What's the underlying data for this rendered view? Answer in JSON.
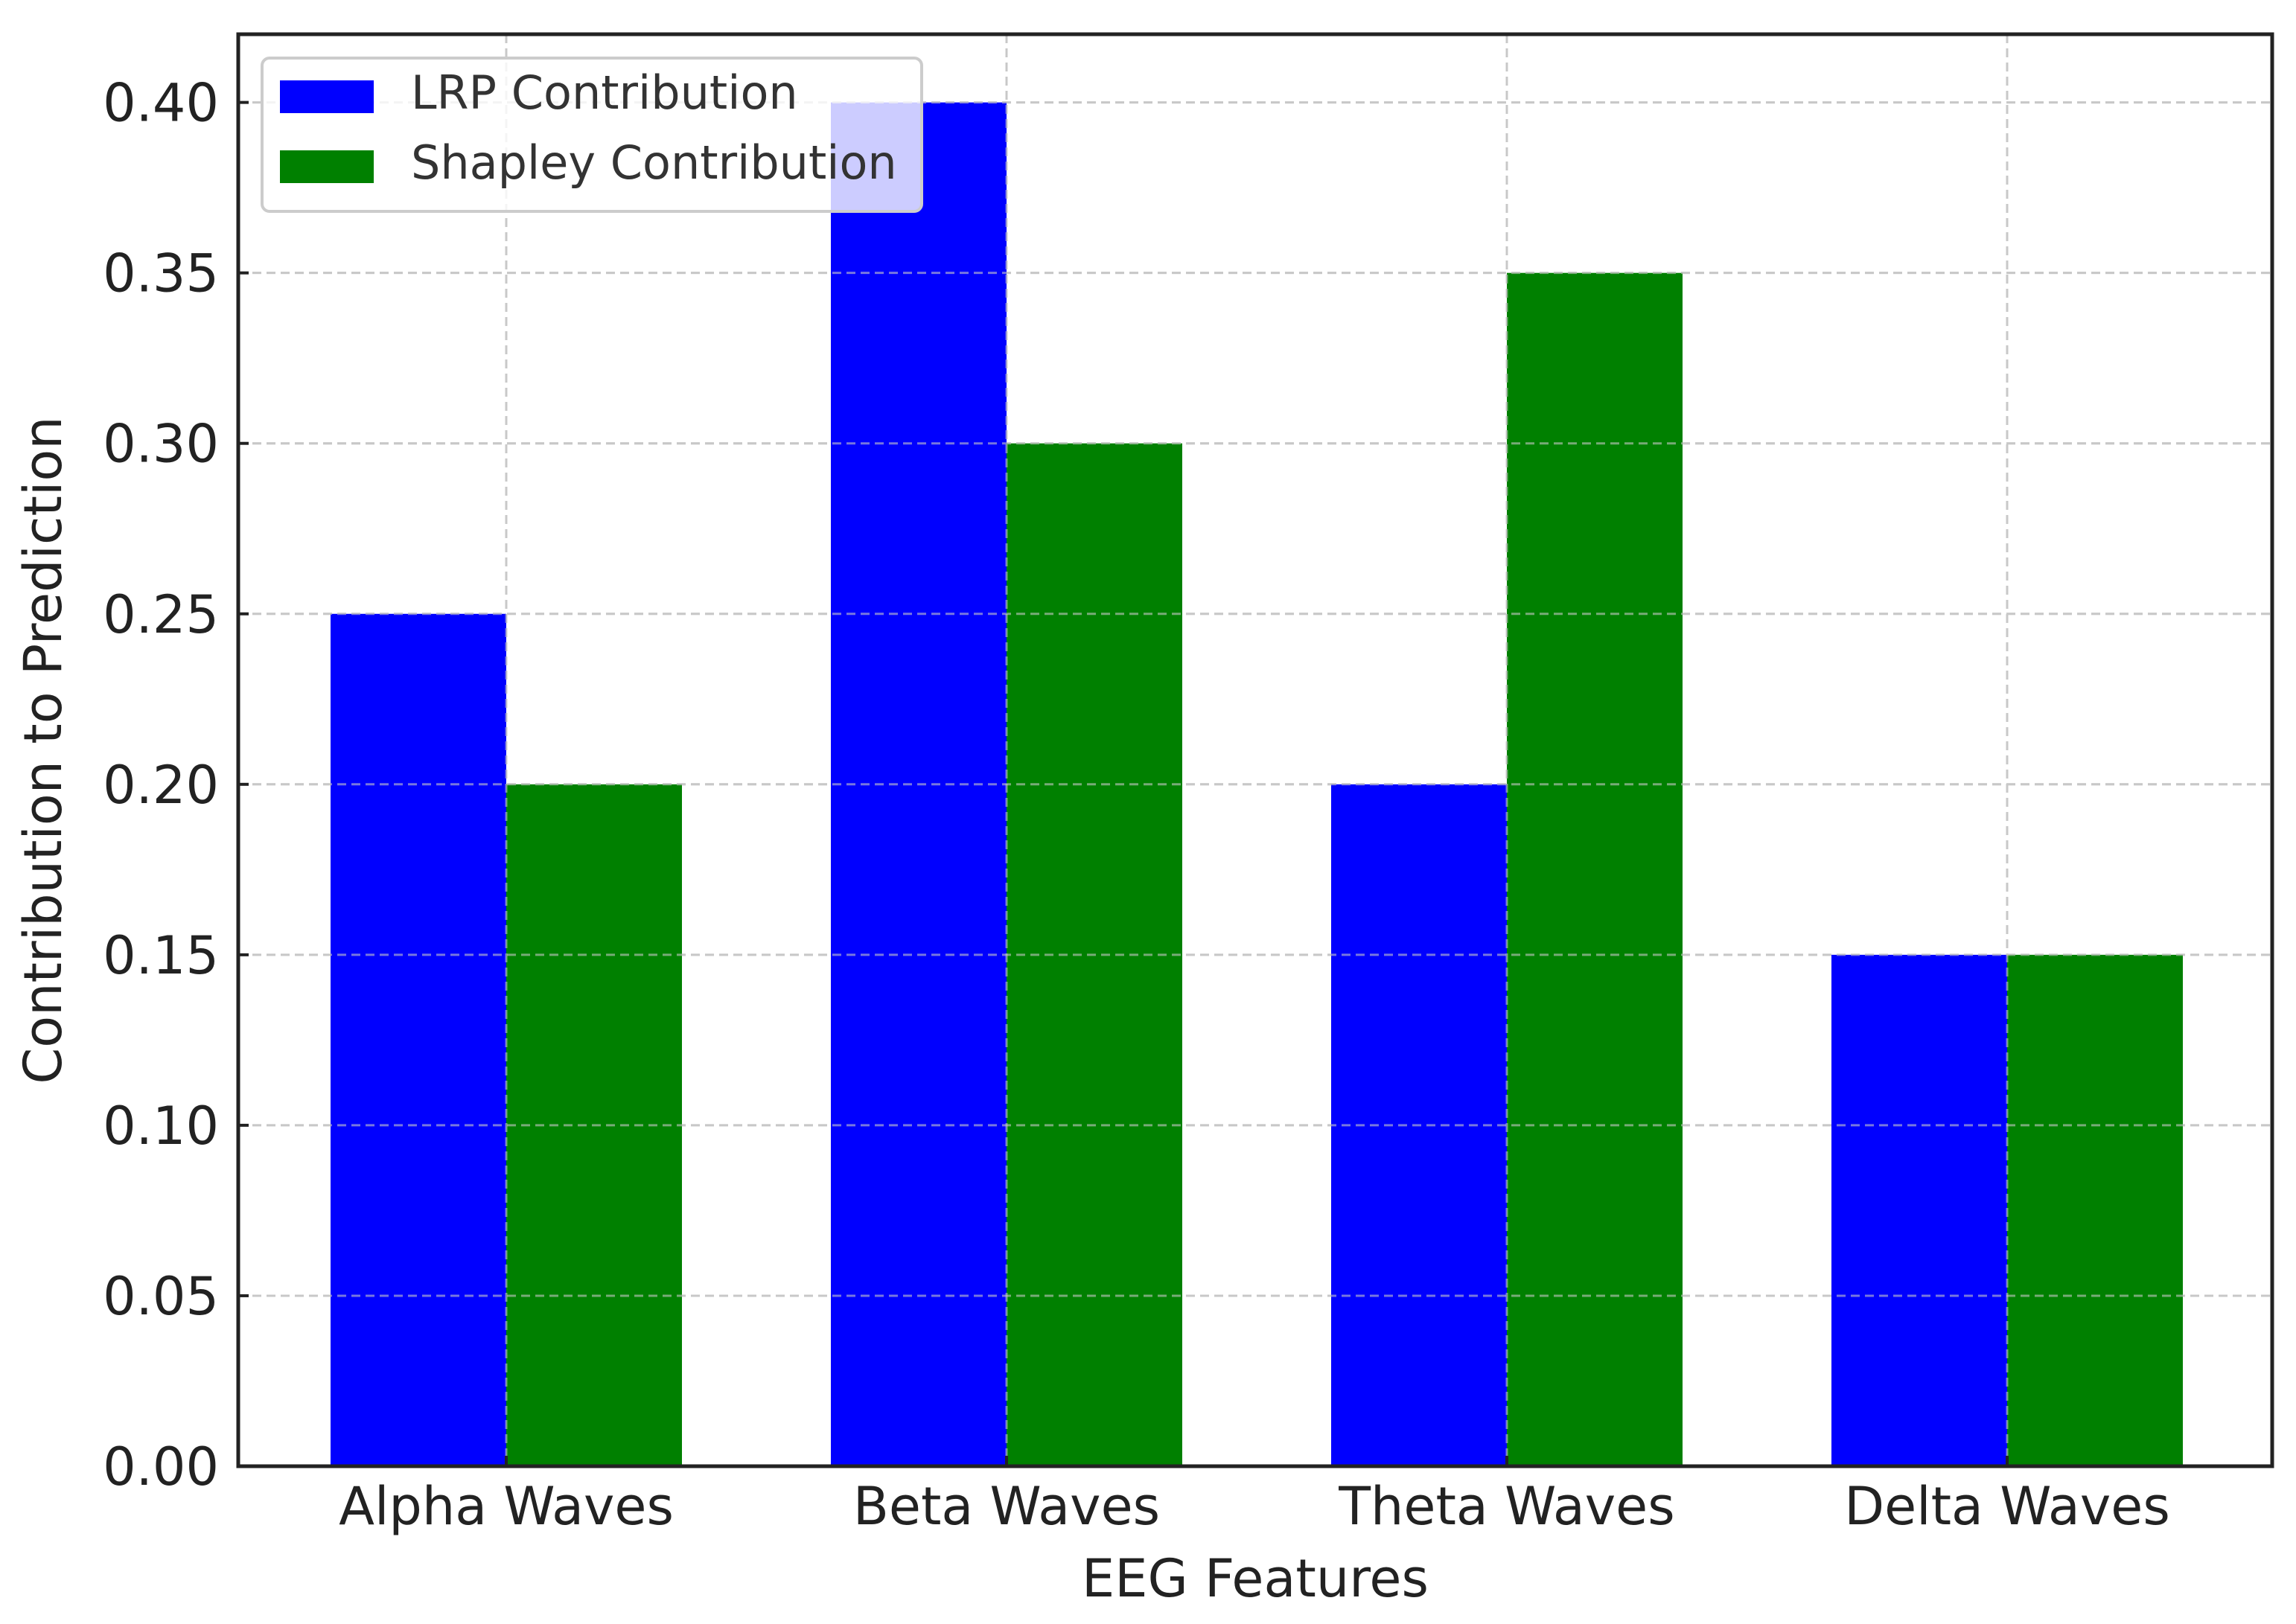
{
  "chart_data": {
    "type": "bar",
    "title": "",
    "xlabel": "EEG Features",
    "ylabel": "Contribution to Prediction",
    "categories": [
      "Alpha Waves",
      "Beta Waves",
      "Theta Waves",
      "Delta Waves"
    ],
    "series": [
      {
        "name": "LRP Contribution",
        "color": "#0000ff",
        "values": [
          0.25,
          0.4,
          0.2,
          0.15
        ]
      },
      {
        "name": "Shapley Contribution",
        "color": "#008000",
        "values": [
          0.2,
          0.3,
          0.35,
          0.15
        ]
      }
    ],
    "ylim": [
      0,
      0.42
    ],
    "yticks": [
      "0.00",
      "0.05",
      "0.10",
      "0.15",
      "0.20",
      "0.25",
      "0.30",
      "0.35",
      "0.40"
    ],
    "grid": true,
    "legend_position": "top-left"
  }
}
